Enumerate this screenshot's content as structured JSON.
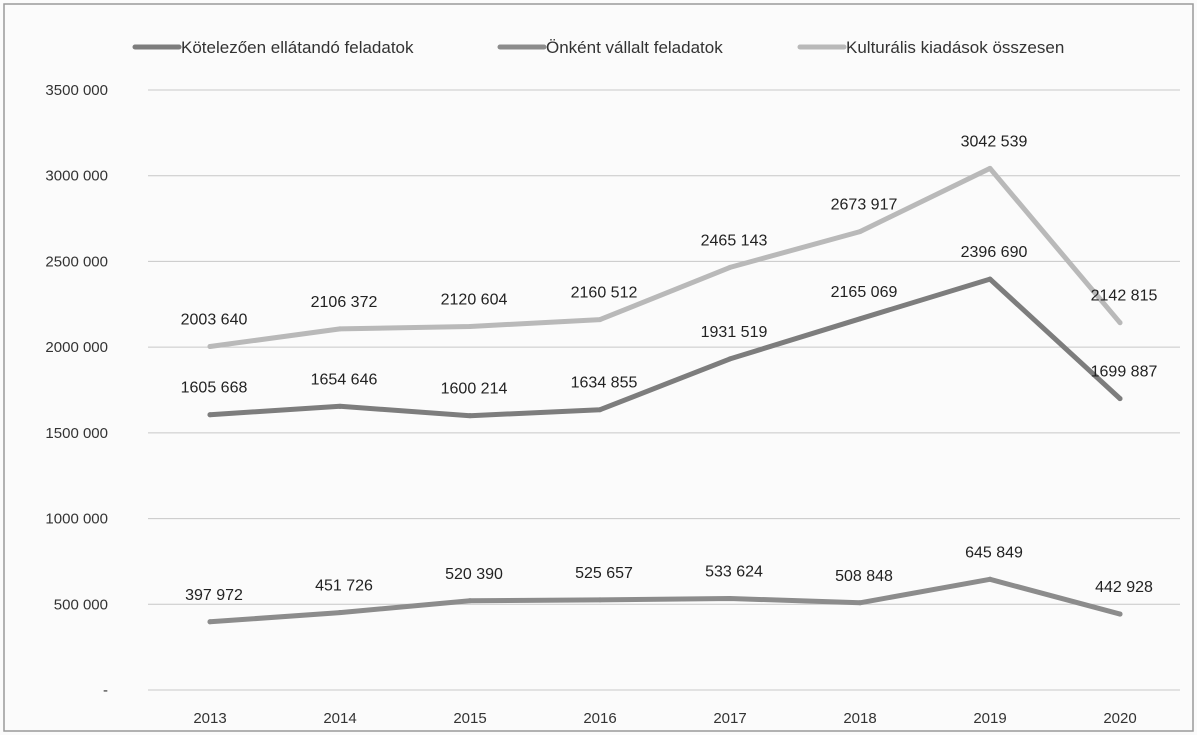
{
  "chart_data": {
    "type": "line",
    "title": "",
    "xlabel": "",
    "ylabel": "",
    "categories": [
      "2013",
      "2014",
      "2015",
      "2016",
      "2017",
      "2018",
      "2019",
      "2020"
    ],
    "ylim": [
      0,
      3500000
    ],
    "yticks": [
      0,
      500000,
      1000000,
      1500000,
      2000000,
      2500000,
      3000000,
      3500000
    ],
    "ytick_labels": [
      "-",
      "500 000",
      "1000 000",
      "1500 000",
      "2000 000",
      "2500 000",
      "3000 000",
      "3500 000"
    ],
    "grid": true,
    "legend_position": "top",
    "series": [
      {
        "name": "Kötelezően ellátandó feladatok",
        "color": "#7d7d7d",
        "values": [
          1605668,
          1654646,
          1600214,
          1634855,
          1931519,
          2165069,
          2396690,
          1699887
        ],
        "labels": [
          "1605 668",
          "1654 646",
          "1600 214",
          "1634 855",
          "1931 519",
          "2165 069",
          "2396 690",
          "1699 887"
        ]
      },
      {
        "name": "Önként vállalt feladatok",
        "color": "#8c8c8c",
        "values": [
          397972,
          451726,
          520390,
          525657,
          533624,
          508848,
          645849,
          442928
        ],
        "labels": [
          "397 972",
          "451 726",
          "520 390",
          "525 657",
          "533 624",
          "508 848",
          "645 849",
          "442 928"
        ]
      },
      {
        "name": "Kulturális kiadások összesen",
        "color": "#b9b9b9",
        "values": [
          2003640,
          2106372,
          2120604,
          2160512,
          2465143,
          2673917,
          3042539,
          2142815
        ],
        "labels": [
          "2003 640",
          "2106 372",
          "2120 604",
          "2160 512",
          "2465 143",
          "2673 917",
          "3042 539",
          "2142 815"
        ]
      }
    ]
  }
}
